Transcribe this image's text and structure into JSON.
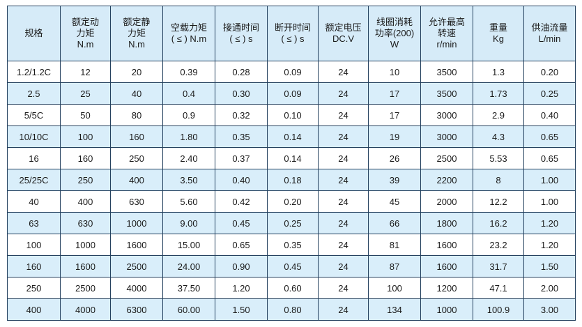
{
  "table": {
    "header": [
      [
        "规格"
      ],
      [
        "额定动",
        "力矩",
        "N.m"
      ],
      [
        "额定静",
        "力矩",
        "N.m"
      ],
      [
        "空载力矩",
        "( ≤ ) N.m"
      ],
      [
        "接通时间",
        "( ≤ ) s"
      ],
      [
        "断开时间",
        "( ≤ ) s"
      ],
      [
        "额定电压",
        "DC.V"
      ],
      [
        "线圈消耗",
        "功率(200)",
        "W"
      ],
      [
        "允许最高",
        "转速",
        "r/min"
      ],
      [
        "重量",
        "Kg"
      ],
      [
        "供油流量",
        "L/min"
      ]
    ],
    "rows": [
      [
        "1.2/1.2C",
        "12",
        "20",
        "0.39",
        "0.28",
        "0.09",
        "24",
        "10",
        "3500",
        "1.3",
        "0.20"
      ],
      [
        "2.5",
        "25",
        "40",
        "0.4",
        "0.30",
        "0.09",
        "24",
        "17",
        "3500",
        "1.73",
        "0.25"
      ],
      [
        "5/5C",
        "50",
        "80",
        "0.9",
        "0.32",
        "0.10",
        "24",
        "17",
        "3000",
        "2.9",
        "0.40"
      ],
      [
        "10/10C",
        "100",
        "160",
        "1.80",
        "0.35",
        "0.14",
        "24",
        "19",
        "3000",
        "4.3",
        "0.65"
      ],
      [
        "16",
        "160",
        "250",
        "2.40",
        "0.37",
        "0.14",
        "24",
        "26",
        "2500",
        "5.53",
        "0.65"
      ],
      [
        "25/25C",
        "250",
        "400",
        "3.50",
        "0.40",
        "0.18",
        "24",
        "39",
        "2200",
        "8",
        "1.00"
      ],
      [
        "40",
        "400",
        "630",
        "5.60",
        "0.42",
        "0.20",
        "24",
        "45",
        "2000",
        "12.2",
        "1.00"
      ],
      [
        "63",
        "630",
        "1000",
        "9.00",
        "0.45",
        "0.25",
        "24",
        "66",
        "1800",
        "16.2",
        "1.20"
      ],
      [
        "100",
        "1000",
        "1600",
        "15.00",
        "0.65",
        "0.35",
        "24",
        "81",
        "1600",
        "23.2",
        "1.20"
      ],
      [
        "160",
        "1600",
        "2500",
        "24.00",
        "0.90",
        "0.45",
        "24",
        "87",
        "1600",
        "31.7",
        "1.50"
      ],
      [
        "250",
        "2500",
        "4000",
        "37.50",
        "1.20",
        "0.60",
        "24",
        "100",
        "1200",
        "47.1",
        "2.00"
      ],
      [
        "400",
        "4000",
        "6300",
        "60.00",
        "1.50",
        "0.80",
        "24",
        "134",
        "1000",
        "100.9",
        "3.00"
      ]
    ]
  }
}
